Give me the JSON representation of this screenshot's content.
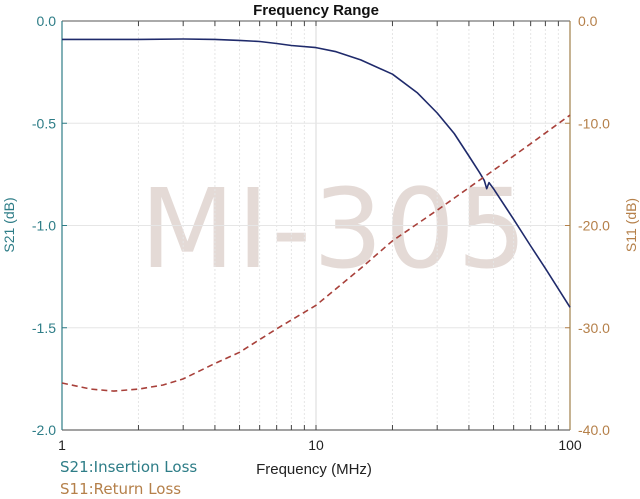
{
  "chart_data": {
    "type": "line",
    "title": "Frequency Range",
    "xlabel": "Frequency (MHz)",
    "xscale": "log",
    "xlim": [
      1,
      100
    ],
    "x_ticks": [
      "1",
      "10",
      "100"
    ],
    "y_left": {
      "label": "S21 (dB)",
      "ylim": [
        -2.0,
        0.0
      ],
      "ticks": [
        "0.0",
        "-0.5",
        "-1.0",
        "-1.5",
        "-2.0"
      ],
      "color": "#2e7d87"
    },
    "y_right": {
      "label": "S11 (dB)",
      "ylim": [
        -40.0,
        0.0
      ],
      "ticks": [
        "0.0",
        "-10.0",
        "-20.0",
        "-30.0",
        "-40.0"
      ],
      "color": "#b5804a"
    },
    "grid": true,
    "series": [
      {
        "name": "S21",
        "axis": "left",
        "style": "solid",
        "color": "#1f2a6b",
        "x": [
          1,
          1.5,
          2,
          3,
          4,
          5,
          6,
          7,
          8,
          10,
          12,
          15,
          20,
          25,
          30,
          35,
          40,
          44,
          46,
          47,
          48,
          50,
          60,
          70,
          80,
          90,
          100
        ],
        "y": [
          -0.09,
          -0.09,
          -0.09,
          -0.088,
          -0.09,
          -0.095,
          -0.1,
          -0.11,
          -0.12,
          -0.13,
          -0.15,
          -0.19,
          -0.26,
          -0.35,
          -0.45,
          -0.55,
          -0.66,
          -0.74,
          -0.78,
          -0.82,
          -0.79,
          -0.82,
          -0.97,
          -1.1,
          -1.21,
          -1.31,
          -1.4
        ]
      },
      {
        "name": "S11",
        "axis": "right",
        "style": "dashed",
        "color": "#a8403a",
        "x": [
          1,
          1.3,
          1.6,
          2,
          2.5,
          3,
          4,
          5,
          7,
          10,
          15,
          20,
          30,
          40,
          50,
          70,
          100
        ],
        "y": [
          -35.4,
          -36.0,
          -36.2,
          -36.0,
          -35.6,
          -35.0,
          -33.5,
          -32.4,
          -30.1,
          -27.8,
          -24.2,
          -21.5,
          -18.5,
          -16.3,
          -14.6,
          -12.0,
          -9.2
        ]
      }
    ],
    "annotations": {
      "legend_s21": "S21:Insertion Loss",
      "legend_s11": "S11:Return Loss"
    },
    "watermark": "MI-305"
  }
}
